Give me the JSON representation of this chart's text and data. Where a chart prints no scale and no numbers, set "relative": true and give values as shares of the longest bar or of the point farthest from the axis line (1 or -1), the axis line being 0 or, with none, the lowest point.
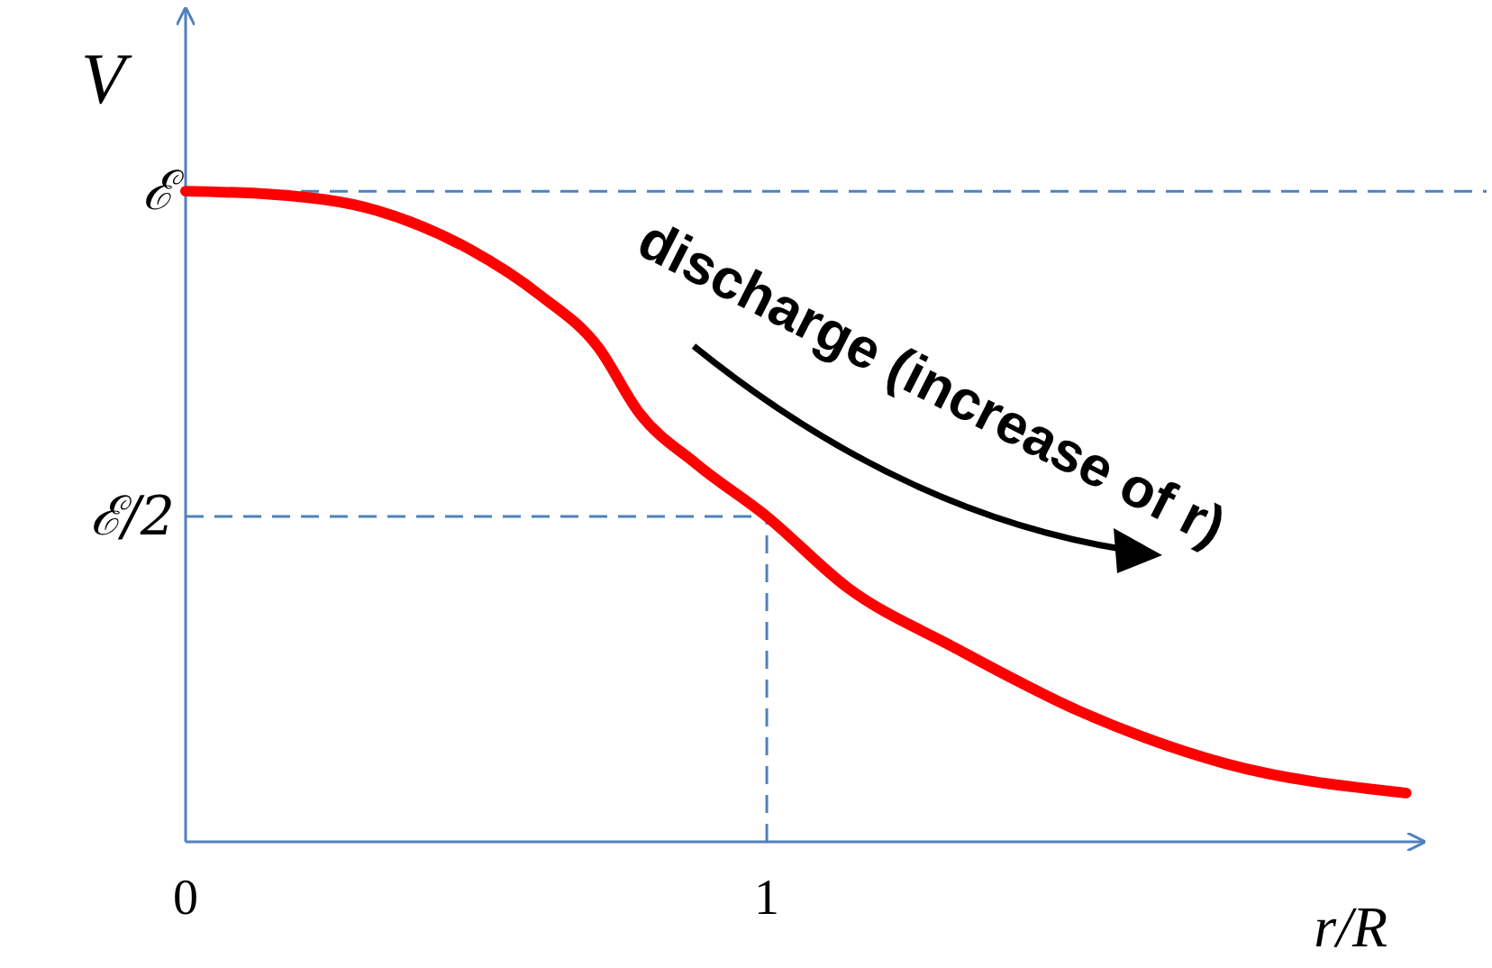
{
  "chart_data": {
    "type": "line",
    "xlabel": "r/R",
    "ylabel": "V",
    "relative": true,
    "x": [
      0,
      0.15,
      0.33,
      0.49,
      0.61,
      0.71,
      0.78,
      0.88,
      1.0,
      1.14,
      1.32,
      1.54,
      1.79,
      2.1
    ],
    "series": [
      {
        "color": "#ff0000",
        "values": [
          1,
          0.995,
          0.97,
          0.91,
          0.84,
          0.76,
          0.66,
          0.58,
          0.5,
          0.39,
          0.3,
          0.2,
          0.12,
          0.075
        ]
      }
    ],
    "xlim": [
      0,
      2.13
    ],
    "xticks": [
      0,
      1
    ],
    "ref_lines": [
      {
        "axis": "y",
        "value": 1,
        "label": "ℰ",
        "color": "#4f81bd",
        "line_style": "dashed"
      },
      {
        "axis": "y",
        "value": 0.5,
        "label": "ℰ/2",
        "color": "#4f81bd",
        "line_style": "dashed"
      },
      {
        "axis": "x",
        "value": 1,
        "color": "#4f81bd",
        "line_style": "dashed"
      }
    ],
    "annotations": [
      "discharge (increase of r)"
    ],
    "marker": "none",
    "line_style": "solid"
  }
}
